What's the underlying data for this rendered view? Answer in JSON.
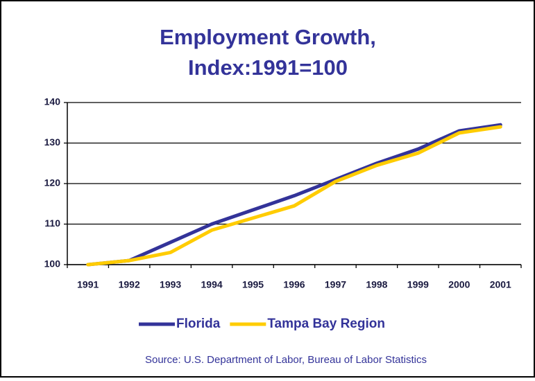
{
  "chart_data": {
    "type": "line",
    "title": [
      "Employment Growth,",
      "Index:1991=100"
    ],
    "categories": [
      "1991",
      "1992",
      "1993",
      "1994",
      "1995",
      "1996",
      "1997",
      "1998",
      "1999",
      "2000",
      "2001"
    ],
    "series": [
      {
        "name": "Florida",
        "color": "#333399",
        "values": [
          100,
          101,
          105.5,
          110,
          113.5,
          117,
          121,
          125,
          128.5,
          133,
          134.5
        ]
      },
      {
        "name": "Tampa Bay Region",
        "color": "#ffcc00",
        "values": [
          100,
          101,
          103,
          108.5,
          111.5,
          114.5,
          120.5,
          124.5,
          127.5,
          132.5,
          134
        ]
      }
    ],
    "ylim": [
      100,
      140
    ],
    "yticks": [
      100,
      110,
      120,
      130,
      140
    ],
    "grid": true,
    "legend": "bottom",
    "source": "Source: U.S. Department of Labor, Bureau of Labor Statistics"
  }
}
